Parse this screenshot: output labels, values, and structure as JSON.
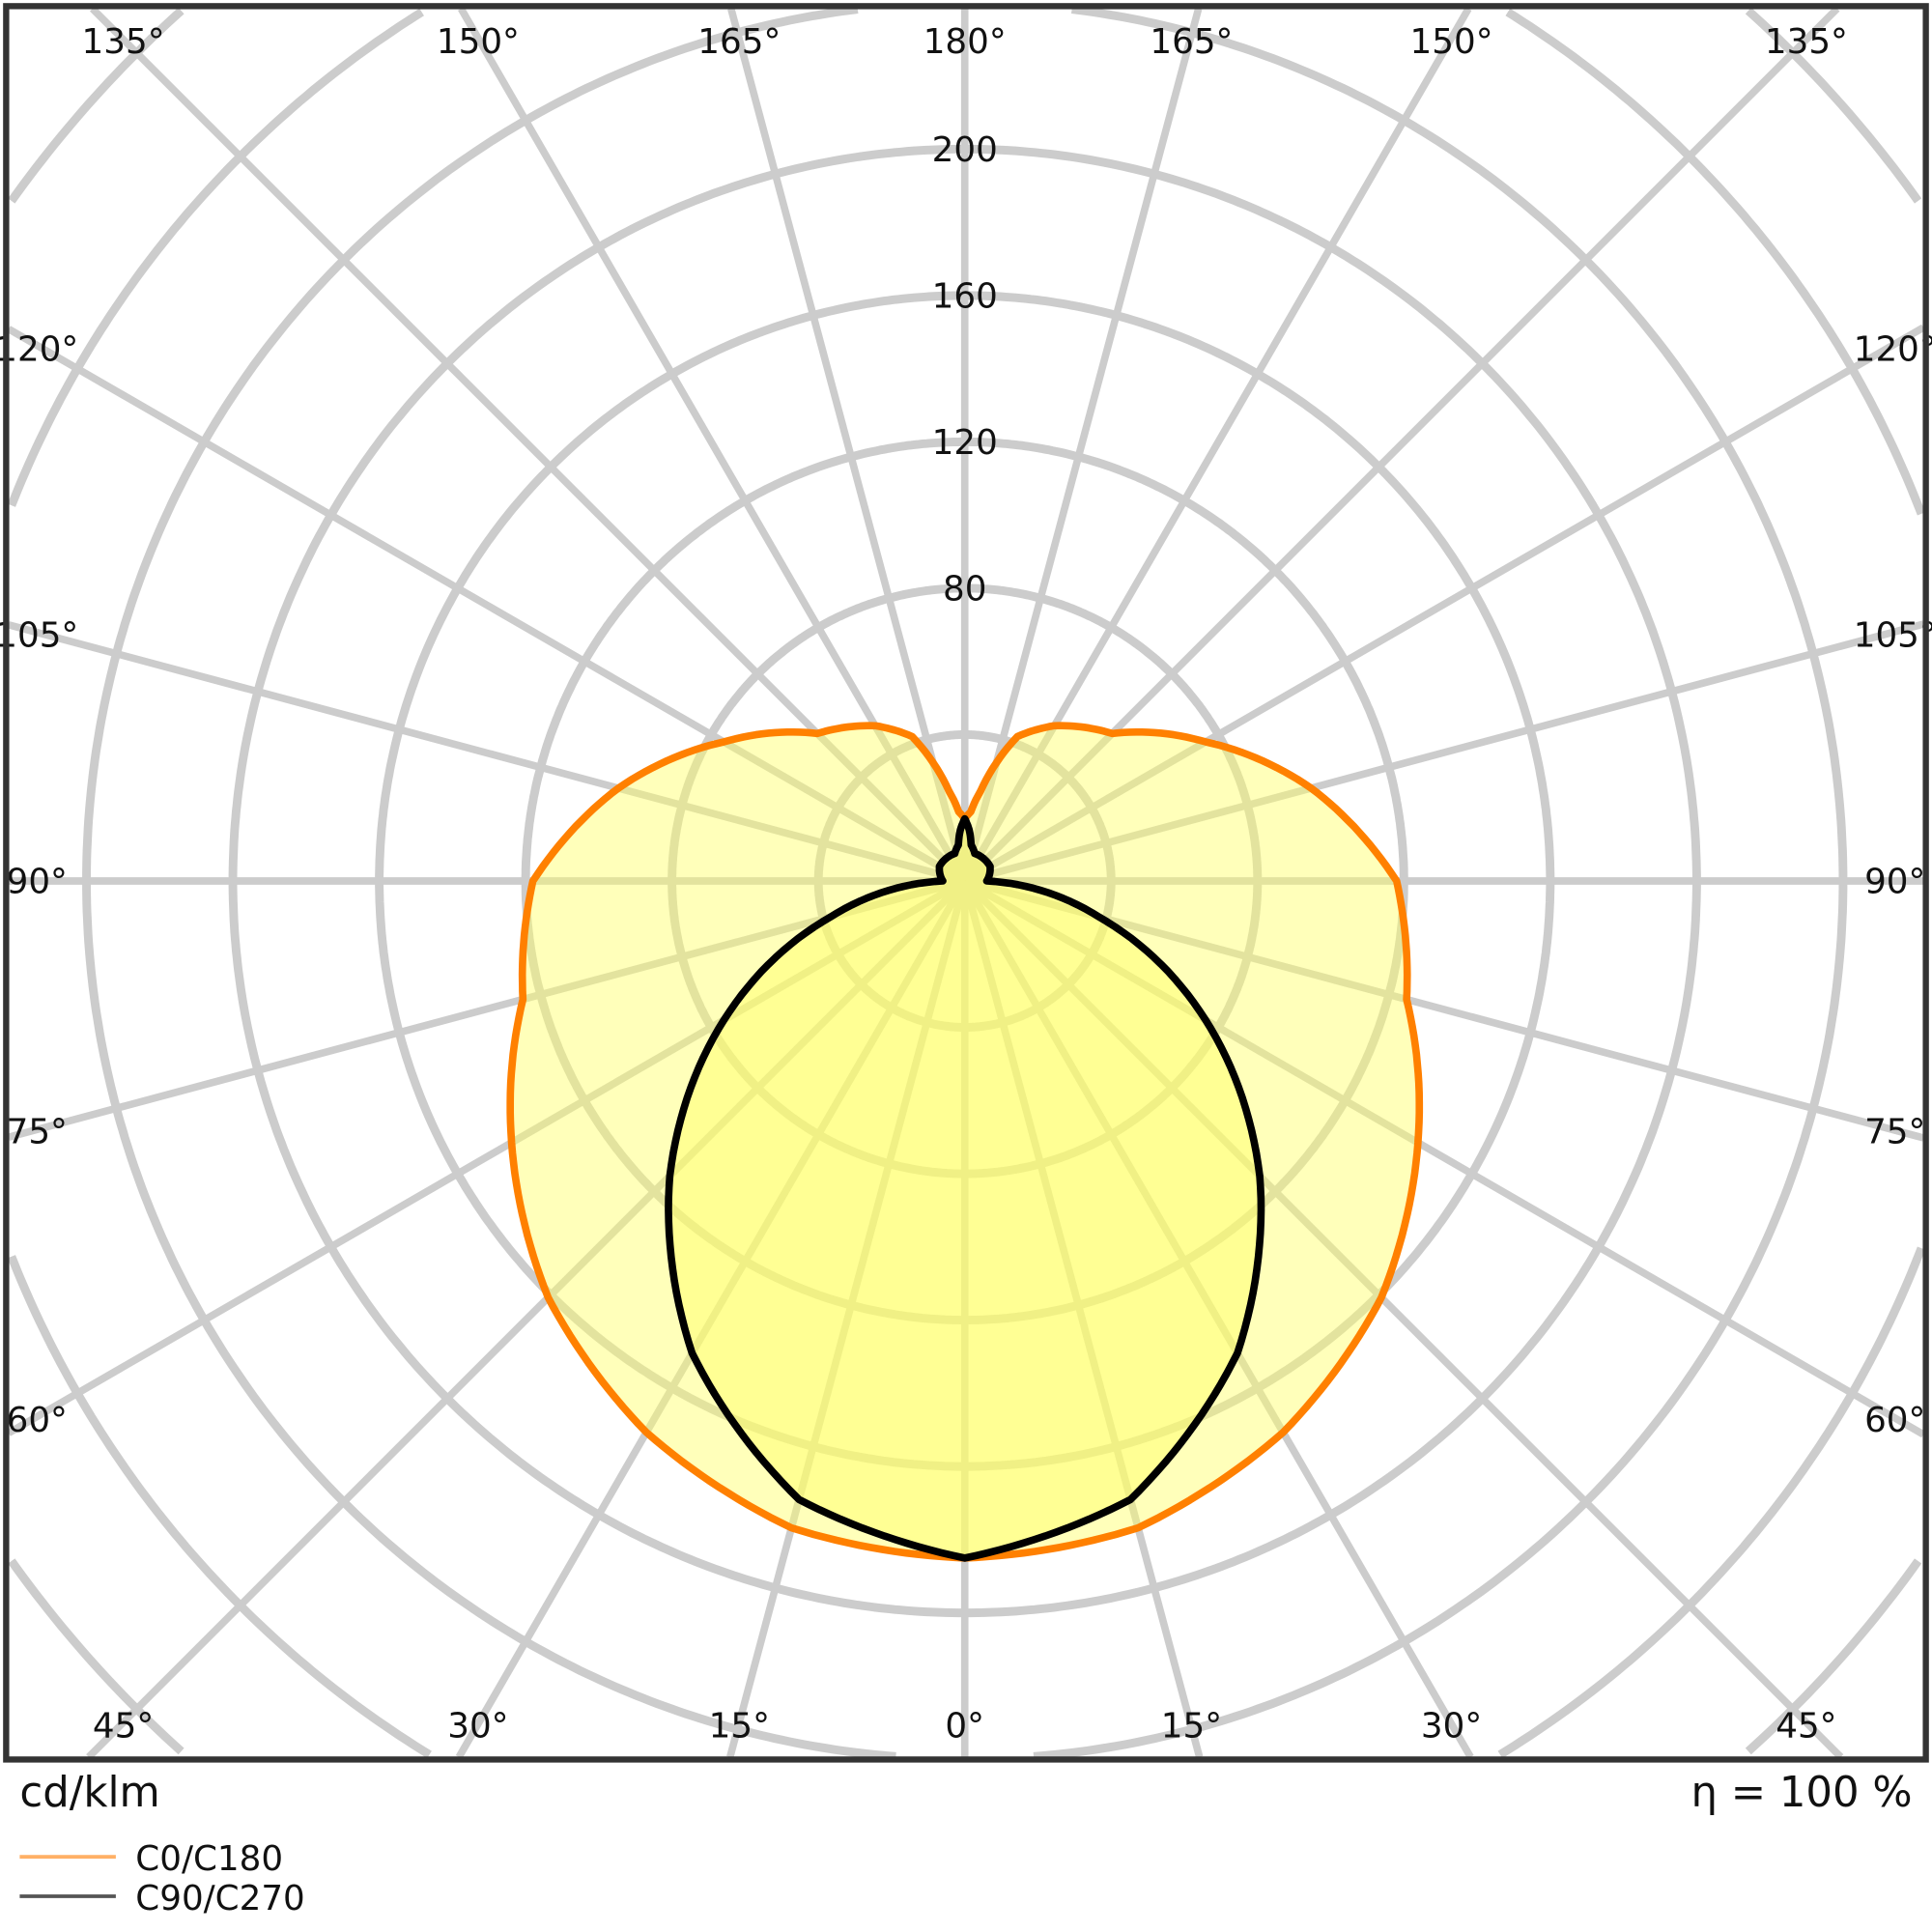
{
  "chart_data": {
    "type": "polar",
    "unit_label": "cd/klm",
    "efficiency_label": "η = 100 %",
    "radial_ticks": [
      80,
      120,
      160,
      200
    ],
    "radial_grid_step": 40,
    "angle_labels": {
      "top": [
        "135°",
        "150°",
        "165°",
        "180°",
        "165°",
        "150°",
        "135°"
      ],
      "bottom": [
        "45°",
        "30°",
        "15°",
        "0°",
        "15°",
        "30°",
        "45°"
      ],
      "left": [
        "120°",
        "105°",
        "90°",
        "75°",
        "60°"
      ],
      "right": [
        "120°",
        "105°",
        "90°",
        "75°",
        "60°"
      ]
    },
    "grid": true,
    "legend_position": "bottom-left",
    "gamma": [
      0,
      15,
      30,
      45,
      60,
      75,
      90,
      105,
      120,
      135,
      150,
      160,
      170,
      175,
      180
    ],
    "series": [
      {
        "name": "C0/C180",
        "color": "#ff8000",
        "values": [
          185,
          183,
          174,
          161,
          143,
          125,
          118,
          98,
          76,
          57,
          49,
          42,
          25,
          19,
          17
        ]
      },
      {
        "name": "C90/C270",
        "color": "#000000",
        "values": [
          185,
          175,
          149,
          114,
          76,
          38,
          6,
          7,
          8,
          8,
          8,
          8,
          10,
          14,
          17
        ]
      }
    ],
    "fill_color": "#ffff66",
    "grid_color": "#cccccc"
  }
}
